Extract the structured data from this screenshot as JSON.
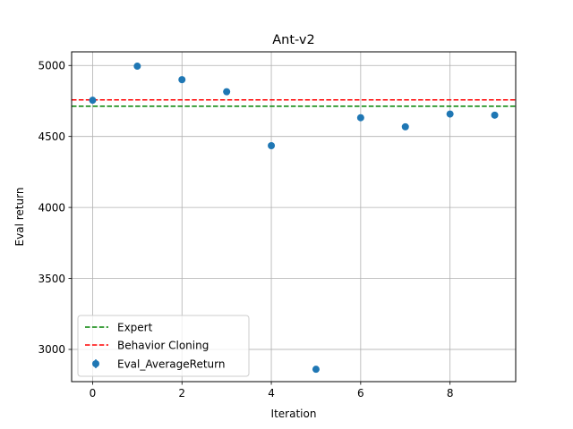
{
  "chart_data": {
    "type": "scatter",
    "title": "Ant-v2",
    "xlabel": "Iteration",
    "ylabel": "Eval return",
    "xlim": [
      -0.47,
      9.47
    ],
    "ylim": [
      2773,
      5096
    ],
    "xticks": [
      0,
      2,
      4,
      6,
      8
    ],
    "yticks": [
      3000,
      3500,
      4000,
      4500,
      5000
    ],
    "grid": true,
    "legend_position": "lower left",
    "series": [
      {
        "name": "Eval_AverageReturn",
        "type": "errorbar-scatter",
        "color": "#1f77b4",
        "x": [
          0,
          1,
          2,
          3,
          4,
          5,
          6,
          7,
          8,
          9
        ],
        "y": [
          4755,
          4995,
          4900,
          4815,
          4435,
          2860,
          4632,
          4568,
          4658,
          4650
        ]
      }
    ],
    "reference_lines": [
      {
        "name": "Expert",
        "y": 4713,
        "color": "#008000",
        "style": "dashed"
      },
      {
        "name": "Behavior Cloning",
        "y": 4758,
        "color": "#ff0000",
        "style": "dashed"
      }
    ],
    "legend": [
      {
        "label": "Expert",
        "kind": "line",
        "color": "#008000"
      },
      {
        "label": "Behavior Cloning",
        "kind": "line",
        "color": "#ff0000"
      },
      {
        "label": "Eval_AverageReturn",
        "kind": "marker",
        "color": "#1f77b4"
      }
    ]
  }
}
